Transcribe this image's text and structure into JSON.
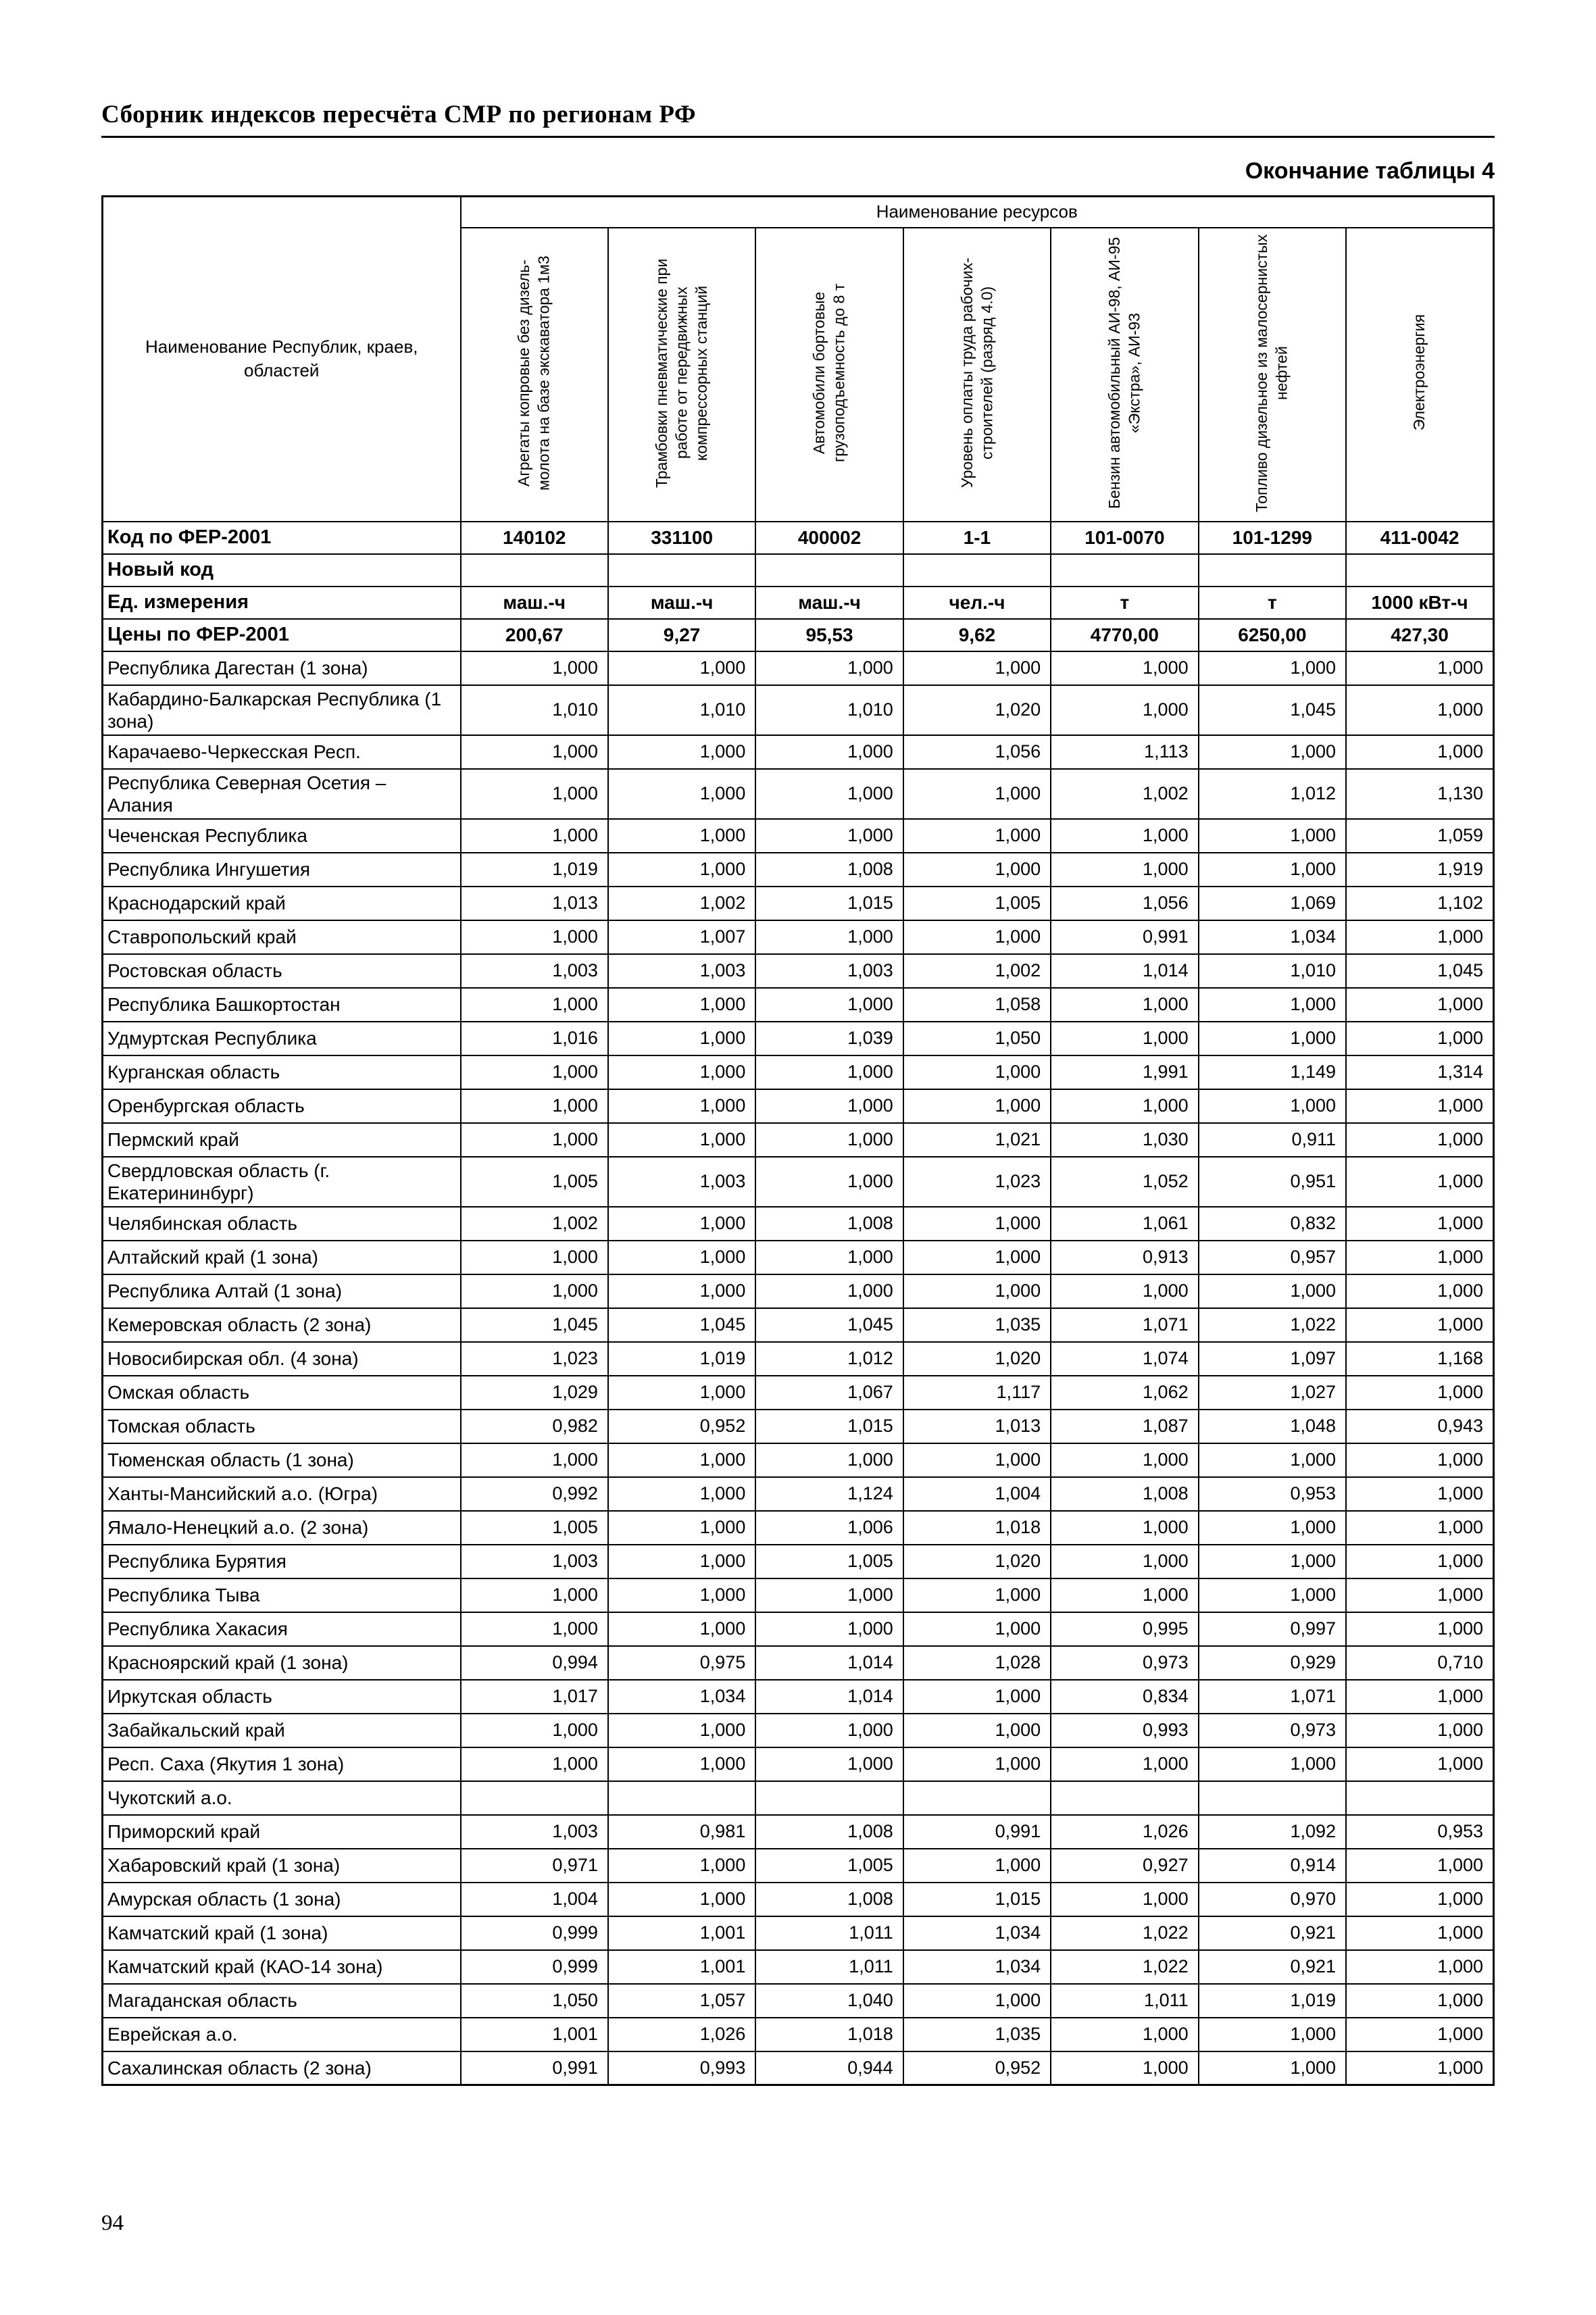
{
  "page": {
    "header_title": "Сборник индексов пересчёта СМР  по регионам РФ",
    "table_caption": "Окончание таблицы 4",
    "page_number": "94"
  },
  "table": {
    "resources_header": "Наименование ресурсов",
    "first_col_header": "Наименование Республик, краев, областей",
    "columns": [
      "Агрегаты копровые без дизель-молота на базе экскаватора 1м3",
      "Трамбовки пневматические при работе от передвижных компрессорных станций",
      "Автомобили бортовые грузоподъемность до 8 т",
      "Уровень оплаты труда рабочих-строителей (разряд 4.0)",
      "Бензин автомобильный АИ-98, АИ-95 «Экстра», АИ-93",
      "Топливо дизельное из малосернистых нефтей",
      "Электроэнергия"
    ],
    "info_rows": [
      {
        "label": "Код по ФЕР-2001",
        "values": [
          "140102",
          "331100",
          "400002",
          "1-1",
          "101-0070",
          "101-1299",
          "411-0042"
        ]
      },
      {
        "label": "Новый код",
        "values": [
          "",
          "",
          "",
          "",
          "",
          "",
          ""
        ]
      },
      {
        "label": "Ед. измерения",
        "values": [
          "маш.-ч",
          "маш.-ч",
          "маш.-ч",
          "чел.-ч",
          "т",
          "т",
          "1000 кВт-ч"
        ]
      },
      {
        "label": "Цены по ФЕР-2001",
        "values": [
          "200,67",
          "9,27",
          "95,53",
          "9,62",
          "4770,00",
          "6250,00",
          "427,30"
        ]
      }
    ],
    "rows": [
      {
        "region": "Республика Дагестан (1 зона)",
        "values": [
          "1,000",
          "1,000",
          "1,000",
          "1,000",
          "1,000",
          "1,000",
          "1,000"
        ]
      },
      {
        "region": "Кабардино-Балкарская Республика (1 зона)",
        "values": [
          "1,010",
          "1,010",
          "1,010",
          "1,020",
          "1,000",
          "1,045",
          "1,000"
        ]
      },
      {
        "region": "Карачаево-Черкесская Респ.",
        "values": [
          "1,000",
          "1,000",
          "1,000",
          "1,056",
          "1,113",
          "1,000",
          "1,000"
        ]
      },
      {
        "region": "Республика Северная Осетия – Алания",
        "values": [
          "1,000",
          "1,000",
          "1,000",
          "1,000",
          "1,002",
          "1,012",
          "1,130"
        ]
      },
      {
        "region": "Чеченская Республика",
        "values": [
          "1,000",
          "1,000",
          "1,000",
          "1,000",
          "1,000",
          "1,000",
          "1,059"
        ]
      },
      {
        "region": "Республика Ингушетия",
        "values": [
          "1,019",
          "1,000",
          "1,008",
          "1,000",
          "1,000",
          "1,000",
          "1,919"
        ]
      },
      {
        "region": "Краснодарский край",
        "values": [
          "1,013",
          "1,002",
          "1,015",
          "1,005",
          "1,056",
          "1,069",
          "1,102"
        ]
      },
      {
        "region": "Ставропольский край",
        "values": [
          "1,000",
          "1,007",
          "1,000",
          "1,000",
          "0,991",
          "1,034",
          "1,000"
        ]
      },
      {
        "region": "Ростовская область",
        "values": [
          "1,003",
          "1,003",
          "1,003",
          "1,002",
          "1,014",
          "1,010",
          "1,045"
        ]
      },
      {
        "region": "Республика Башкортостан",
        "values": [
          "1,000",
          "1,000",
          "1,000",
          "1,058",
          "1,000",
          "1,000",
          "1,000"
        ]
      },
      {
        "region": "Удмуртская Республика",
        "values": [
          "1,016",
          "1,000",
          "1,039",
          "1,050",
          "1,000",
          "1,000",
          "1,000"
        ]
      },
      {
        "region": "Курганская область",
        "values": [
          "1,000",
          "1,000",
          "1,000",
          "1,000",
          "1,991",
          "1,149",
          "1,314"
        ]
      },
      {
        "region": "Оренбургская область",
        "values": [
          "1,000",
          "1,000",
          "1,000",
          "1,000",
          "1,000",
          "1,000",
          "1,000"
        ]
      },
      {
        "region": "Пермский край",
        "values": [
          "1,000",
          "1,000",
          "1,000",
          "1,021",
          "1,030",
          "0,911",
          "1,000"
        ]
      },
      {
        "region": "Свердловская область (г. Екатерининбург)",
        "values": [
          "1,005",
          "1,003",
          "1,000",
          "1,023",
          "1,052",
          "0,951",
          "1,000"
        ]
      },
      {
        "region": "Челябинская область",
        "values": [
          "1,002",
          "1,000",
          "1,008",
          "1,000",
          "1,061",
          "0,832",
          "1,000"
        ]
      },
      {
        "region": "Алтайский край (1 зона)",
        "values": [
          "1,000",
          "1,000",
          "1,000",
          "1,000",
          "0,913",
          "0,957",
          "1,000"
        ]
      },
      {
        "region": "Республика Алтай (1 зона)",
        "values": [
          "1,000",
          "1,000",
          "1,000",
          "1,000",
          "1,000",
          "1,000",
          "1,000"
        ]
      },
      {
        "region": "Кемеровская область (2 зона)",
        "values": [
          "1,045",
          "1,045",
          "1,045",
          "1,035",
          "1,071",
          "1,022",
          "1,000"
        ]
      },
      {
        "region": "Новосибирская обл. (4 зона)",
        "values": [
          "1,023",
          "1,019",
          "1,012",
          "1,020",
          "1,074",
          "1,097",
          "1,168"
        ]
      },
      {
        "region": "Омская область",
        "values": [
          "1,029",
          "1,000",
          "1,067",
          "1,117",
          "1,062",
          "1,027",
          "1,000"
        ]
      },
      {
        "region": "Томская область",
        "values": [
          "0,982",
          "0,952",
          "1,015",
          "1,013",
          "1,087",
          "1,048",
          "0,943"
        ]
      },
      {
        "region": "Тюменская область (1 зона)",
        "values": [
          "1,000",
          "1,000",
          "1,000",
          "1,000",
          "1,000",
          "1,000",
          "1,000"
        ]
      },
      {
        "region": "Ханты-Мансийский а.о. (Югра)",
        "values": [
          "0,992",
          "1,000",
          "1,124",
          "1,004",
          "1,008",
          "0,953",
          "1,000"
        ]
      },
      {
        "region": "Ямало-Ненецкий а.о. (2 зона)",
        "values": [
          "1,005",
          "1,000",
          "1,006",
          "1,018",
          "1,000",
          "1,000",
          "1,000"
        ]
      },
      {
        "region": "Республика Бурятия",
        "values": [
          "1,003",
          "1,000",
          "1,005",
          "1,020",
          "1,000",
          "1,000",
          "1,000"
        ]
      },
      {
        "region": "Республика Тыва",
        "values": [
          "1,000",
          "1,000",
          "1,000",
          "1,000",
          "1,000",
          "1,000",
          "1,000"
        ]
      },
      {
        "region": "Республика Хакасия",
        "values": [
          "1,000",
          "1,000",
          "1,000",
          "1,000",
          "0,995",
          "0,997",
          "1,000"
        ]
      },
      {
        "region": "Красноярский край (1 зона)",
        "values": [
          "0,994",
          "0,975",
          "1,014",
          "1,028",
          "0,973",
          "0,929",
          "0,710"
        ]
      },
      {
        "region": "Иркутская область",
        "values": [
          "1,017",
          "1,034",
          "1,014",
          "1,000",
          "0,834",
          "1,071",
          "1,000"
        ]
      },
      {
        "region": "Забайкальский край",
        "values": [
          "1,000",
          "1,000",
          "1,000",
          "1,000",
          "0,993",
          "0,973",
          "1,000"
        ]
      },
      {
        "region": "Респ. Саха (Якутия 1 зона)",
        "values": [
          "1,000",
          "1,000",
          "1,000",
          "1,000",
          "1,000",
          "1,000",
          "1,000"
        ]
      },
      {
        "region": "Чукотский а.о.",
        "values": [
          "",
          "",
          "",
          "",
          "",
          "",
          ""
        ]
      },
      {
        "region": "Приморский край",
        "values": [
          "1,003",
          "0,981",
          "1,008",
          "0,991",
          "1,026",
          "1,092",
          "0,953"
        ]
      },
      {
        "region": "Хабаровский край (1 зона)",
        "values": [
          "0,971",
          "1,000",
          "1,005",
          "1,000",
          "0,927",
          "0,914",
          "1,000"
        ]
      },
      {
        "region": "Амурская область (1 зона)",
        "values": [
          "1,004",
          "1,000",
          "1,008",
          "1,015",
          "1,000",
          "0,970",
          "1,000"
        ]
      },
      {
        "region": "Камчатский край (1 зона)",
        "values": [
          "0,999",
          "1,001",
          "1,011",
          "1,034",
          "1,022",
          "0,921",
          "1,000"
        ]
      },
      {
        "region": "Камчатский край (КАО-14 зона)",
        "values": [
          "0,999",
          "1,001",
          "1,011",
          "1,034",
          "1,022",
          "0,921",
          "1,000"
        ]
      },
      {
        "region": "Магаданская область",
        "values": [
          "1,050",
          "1,057",
          "1,040",
          "1,000",
          "1,011",
          "1,019",
          "1,000"
        ]
      },
      {
        "region": "Еврейская а.о.",
        "values": [
          "1,001",
          "1,026",
          "1,018",
          "1,035",
          "1,000",
          "1,000",
          "1,000"
        ]
      },
      {
        "region": "Сахалинская область (2 зона)",
        "values": [
          "0,991",
          "0,993",
          "0,944",
          "0,952",
          "1,000",
          "1,000",
          "1,000"
        ]
      }
    ]
  }
}
